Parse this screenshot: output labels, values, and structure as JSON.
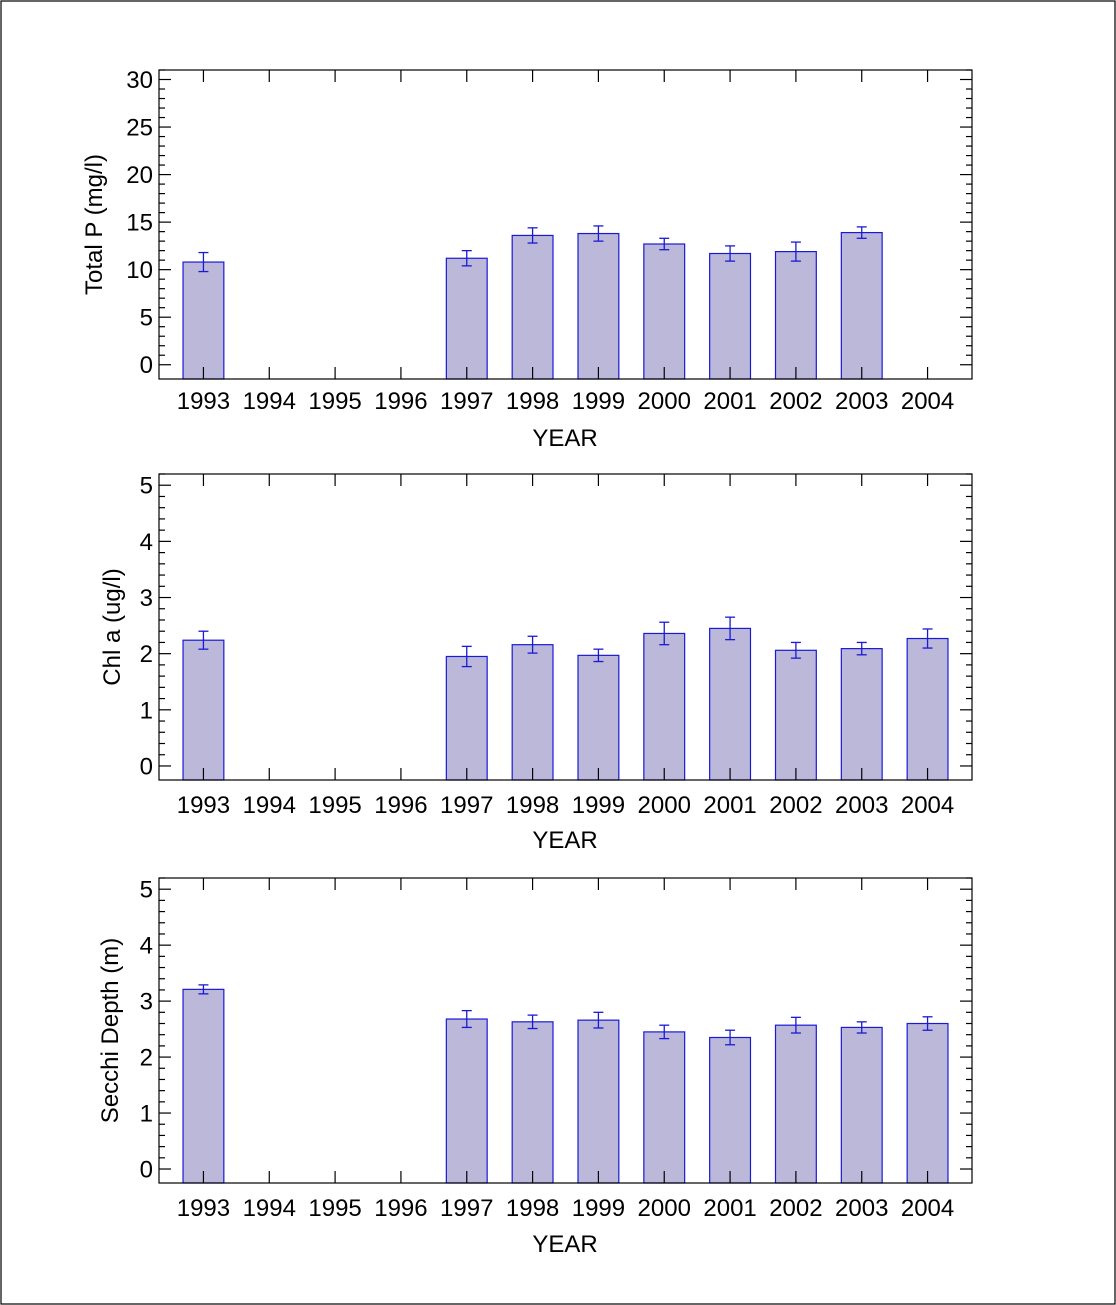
{
  "style": {
    "bar_fill": "#bbb8da",
    "bar_stroke": "#1a1ad6",
    "error_color": "#1a1ad6",
    "axis_color": "#000000",
    "frame_color": "#000000"
  },
  "chart_data": [
    {
      "type": "bar",
      "xlabel": "YEAR",
      "ylabel": "Total P  (mg/l)",
      "ylim": [
        -1.5,
        31
      ],
      "ytick_values": [
        0,
        5,
        10,
        15,
        20,
        25,
        30
      ],
      "ytick_labels": [
        "0",
        "5",
        "10",
        "15",
        "20",
        "25",
        "30"
      ],
      "categories": [
        "1993",
        "1994",
        "1995",
        "1996",
        "1997",
        "1998",
        "1999",
        "2000",
        "2001",
        "2002",
        "2003",
        "2004"
      ],
      "values": [
        10.8,
        null,
        null,
        null,
        11.2,
        13.6,
        13.8,
        12.7,
        11.7,
        11.9,
        13.9,
        null
      ],
      "errors": [
        1.0,
        null,
        null,
        null,
        0.8,
        0.8,
        0.8,
        0.6,
        0.8,
        1.0,
        0.6,
        null
      ],
      "grid": false
    },
    {
      "type": "bar",
      "xlabel": "YEAR",
      "ylabel": "Chl a (ug/l)",
      "ylim": [
        -0.25,
        5.2
      ],
      "ytick_values": [
        0,
        1,
        2,
        3,
        4,
        5
      ],
      "ytick_labels": [
        "0",
        "1",
        "2",
        "3",
        "4",
        "5"
      ],
      "categories": [
        "1993",
        "1994",
        "1995",
        "1996",
        "1997",
        "1998",
        "1999",
        "2000",
        "2001",
        "2002",
        "2003",
        "2004"
      ],
      "values": [
        2.24,
        null,
        null,
        null,
        1.95,
        2.16,
        1.97,
        2.36,
        2.45,
        2.06,
        2.09,
        2.27
      ],
      "errors": [
        0.16,
        null,
        null,
        null,
        0.18,
        0.15,
        0.11,
        0.2,
        0.2,
        0.14,
        0.11,
        0.17
      ],
      "grid": false
    },
    {
      "type": "bar",
      "xlabel": "YEAR",
      "ylabel": "Secchi Depth (m)",
      "ylim": [
        -0.25,
        5.2
      ],
      "ytick_values": [
        0,
        1,
        2,
        3,
        4,
        5
      ],
      "ytick_labels": [
        "0",
        "1",
        "2",
        "3",
        "4",
        "5"
      ],
      "categories": [
        "1993",
        "1994",
        "1995",
        "1996",
        "1997",
        "1998",
        "1999",
        "2000",
        "2001",
        "2002",
        "2003",
        "2004"
      ],
      "values": [
        3.21,
        null,
        null,
        null,
        2.68,
        2.63,
        2.66,
        2.45,
        2.35,
        2.57,
        2.53,
        2.6
      ],
      "errors": [
        0.08,
        null,
        null,
        null,
        0.15,
        0.12,
        0.14,
        0.12,
        0.13,
        0.14,
        0.1,
        0.12
      ],
      "grid": false
    }
  ]
}
